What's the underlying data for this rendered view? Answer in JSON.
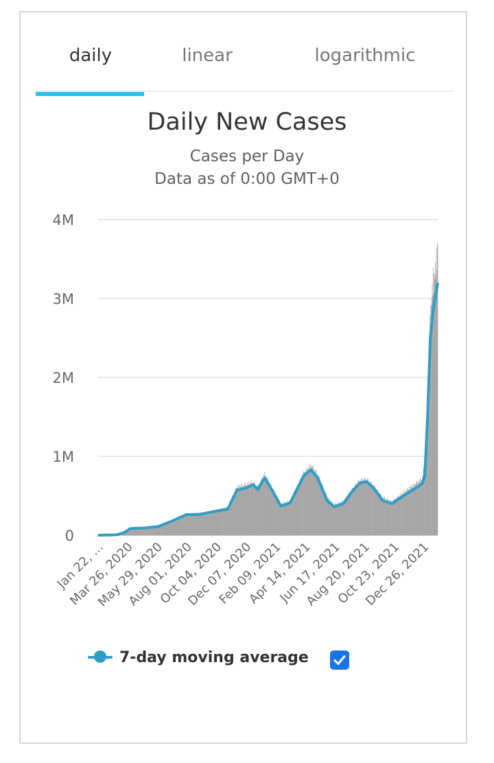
{
  "tabs": [
    {
      "label": "daily",
      "active": true
    },
    {
      "label": "linear",
      "active": false
    },
    {
      "label": "logarithmic",
      "active": false
    }
  ],
  "colors": {
    "accent": "#29c0ef",
    "bars": "#9e9e9e",
    "line": "#2e9ec6",
    "checkbox": "#1a73e8",
    "grid": "#e6e6e6"
  },
  "chart_data": {
    "type": "bar",
    "title": "Daily New Cases",
    "subtitle_lines": [
      "Cases per Day",
      "Data as of 0:00 GMT+0"
    ],
    "xlabel": "",
    "ylabel": "",
    "ylim": [
      0,
      4000000
    ],
    "yticks": [
      {
        "value": 0,
        "label": "0"
      },
      {
        "value": 1000000,
        "label": "1M"
      },
      {
        "value": 2000000,
        "label": "2M"
      },
      {
        "value": 3000000,
        "label": "3M"
      },
      {
        "value": 4000000,
        "label": "4M"
      }
    ],
    "x_tick_labels": [
      "Jan 22, ...",
      "Mar 26, 2020",
      "May 29, 2020",
      "Aug 01, 2020",
      "Oct 04, 2020",
      "Dec 07, 2020",
      "Feb 09, 2021",
      "Apr 14, 2021",
      "Jun 17, 2021",
      "Aug 20, 2021",
      "Oct 23, 2021",
      "Dec 26, 2021"
    ],
    "x_tick_day_index": [
      0,
      64,
      128,
      192,
      256,
      320,
      384,
      448,
      512,
      576,
      640,
      704
    ],
    "total_days": 735,
    "series": [
      {
        "name": "Daily New Cases",
        "kind": "bar",
        "anchors": [
          [
            0,
            0
          ],
          [
            40,
            5000
          ],
          [
            55,
            30000
          ],
          [
            70,
            80000
          ],
          [
            100,
            95000
          ],
          [
            130,
            110000
          ],
          [
            160,
            180000
          ],
          [
            190,
            265000
          ],
          [
            220,
            270000
          ],
          [
            250,
            300000
          ],
          [
            280,
            350000
          ],
          [
            300,
            600000
          ],
          [
            320,
            630000
          ],
          [
            335,
            660000
          ],
          [
            345,
            600000
          ],
          [
            360,
            760000
          ],
          [
            375,
            600000
          ],
          [
            395,
            390000
          ],
          [
            415,
            420000
          ],
          [
            445,
            780000
          ],
          [
            460,
            870000
          ],
          [
            475,
            760000
          ],
          [
            495,
            470000
          ],
          [
            510,
            380000
          ],
          [
            530,
            420000
          ],
          [
            550,
            580000
          ],
          [
            565,
            680000
          ],
          [
            580,
            700000
          ],
          [
            595,
            620000
          ],
          [
            615,
            470000
          ],
          [
            635,
            420000
          ],
          [
            660,
            530000
          ],
          [
            690,
            660000
          ],
          [
            700,
            700000
          ],
          [
            706,
            900000
          ],
          [
            712,
            1800000
          ],
          [
            718,
            2800000
          ],
          [
            724,
            3200000
          ],
          [
            730,
            3350000
          ],
          [
            734,
            3720000
          ]
        ]
      },
      {
        "name": "7-day moving average",
        "kind": "line",
        "anchors": [
          [
            0,
            0
          ],
          [
            40,
            5000
          ],
          [
            55,
            30000
          ],
          [
            70,
            85000
          ],
          [
            100,
            92000
          ],
          [
            130,
            110000
          ],
          [
            160,
            180000
          ],
          [
            190,
            260000
          ],
          [
            220,
            265000
          ],
          [
            250,
            300000
          ],
          [
            280,
            330000
          ],
          [
            300,
            570000
          ],
          [
            320,
            600000
          ],
          [
            335,
            640000
          ],
          [
            345,
            580000
          ],
          [
            360,
            730000
          ],
          [
            375,
            580000
          ],
          [
            395,
            370000
          ],
          [
            415,
            410000
          ],
          [
            445,
            760000
          ],
          [
            460,
            830000
          ],
          [
            475,
            720000
          ],
          [
            495,
            440000
          ],
          [
            510,
            360000
          ],
          [
            530,
            400000
          ],
          [
            550,
            560000
          ],
          [
            565,
            660000
          ],
          [
            580,
            680000
          ],
          [
            595,
            600000
          ],
          [
            615,
            440000
          ],
          [
            635,
            400000
          ],
          [
            660,
            500000
          ],
          [
            690,
            610000
          ],
          [
            700,
            650000
          ],
          [
            706,
            750000
          ],
          [
            712,
            1500000
          ],
          [
            718,
            2500000
          ],
          [
            724,
            2850000
          ],
          [
            730,
            3050000
          ],
          [
            734,
            3200000
          ]
        ]
      }
    ],
    "legend": [
      {
        "label": "7-day moving average",
        "checked": true
      }
    ]
  }
}
